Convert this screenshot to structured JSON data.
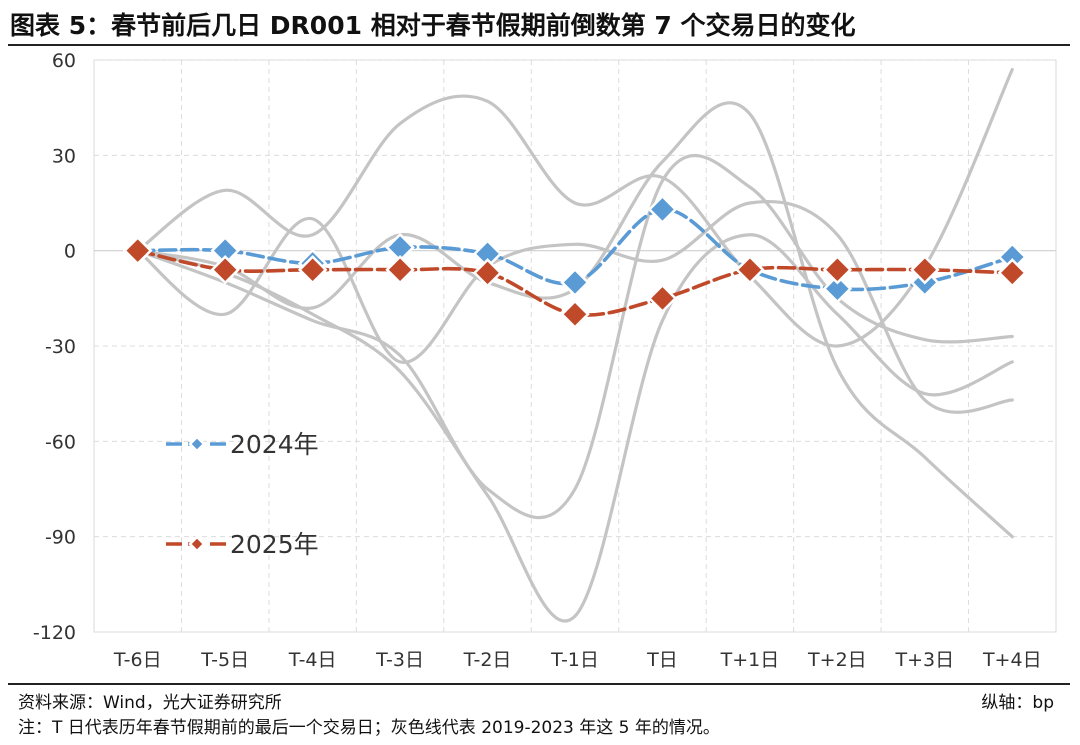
{
  "title": "图表 5：春节前后几日 DR001 相对于春节假期前倒数第 7 个交易日的变化",
  "source": "资料来源：Wind，光大证券研究所",
  "unit": "纵轴：bp",
  "note": "注：T 日代表历年春节假期前的最后一个交易日；灰色线代表 2019-2023 年这 5 年的情况。",
  "chart_data": {
    "type": "line",
    "title": "春节前后几日 DR001 相对于春节假期前倒数第 7 个交易日的变化",
    "xlabel": "",
    "ylabel": "bp",
    "ylim": [
      -120,
      60
    ],
    "yticks": [
      60,
      30,
      0,
      -30,
      -60,
      -90,
      -120
    ],
    "ytick_labels": [
      "60",
      "30",
      "0",
      "-30",
      "-60",
      "-90",
      "-120"
    ],
    "categories": [
      "T-6日",
      "T-5日",
      "T-4日",
      "T-3日",
      "T-2日",
      "T-1日",
      "T日",
      "T+1日",
      "T+2日",
      "T+3日",
      "T+4日"
    ],
    "grid": true,
    "series": [
      {
        "name": "2019-2023 年（灰色线 1）",
        "color": "#c4c4c4",
        "values": [
          0,
          19,
          5,
          40,
          47,
          15,
          23,
          -8,
          -30,
          -5,
          57
        ]
      },
      {
        "name": "2019-2023 年（灰色线 2）",
        "color": "#c4c4c4",
        "values": [
          0,
          -7,
          -20,
          -38,
          -77,
          -115,
          -22,
          5,
          -20,
          -45,
          -35
        ]
      },
      {
        "name": "2019-2023 年（灰色线 3）",
        "color": "#c4c4c4",
        "values": [
          0,
          -20,
          10,
          -35,
          -5,
          2,
          -3,
          15,
          5,
          -47,
          -47
        ]
      },
      {
        "name": "2019-2023 年（灰色线 4）",
        "color": "#c4c4c4",
        "values": [
          0,
          -10,
          -22,
          -33,
          -75,
          -75,
          22,
          20,
          -15,
          -28,
          -27
        ]
      },
      {
        "name": "2019-2023 年（灰色线 5）",
        "color": "#c4c4c4",
        "values": [
          0,
          -5,
          -18,
          5,
          -10,
          -12,
          28,
          43,
          -37,
          -65,
          -90
        ]
      },
      {
        "name": "2024年",
        "color": "#5b9bd5",
        "dashed": true,
        "values": [
          0,
          0,
          -4,
          1,
          -1,
          -10,
          13,
          -6,
          -12,
          -10,
          -2
        ]
      },
      {
        "name": "2025年",
        "color": "#c0492a",
        "dashed": true,
        "values": [
          0,
          -6,
          -6,
          -6,
          -7,
          -20,
          -15,
          -6,
          -6,
          -6,
          -7
        ]
      }
    ],
    "legend": [
      {
        "label": "2024年",
        "color": "#5b9bd5"
      },
      {
        "label": "2025年",
        "color": "#c0492a"
      }
    ],
    "legend_position": "center-left"
  }
}
